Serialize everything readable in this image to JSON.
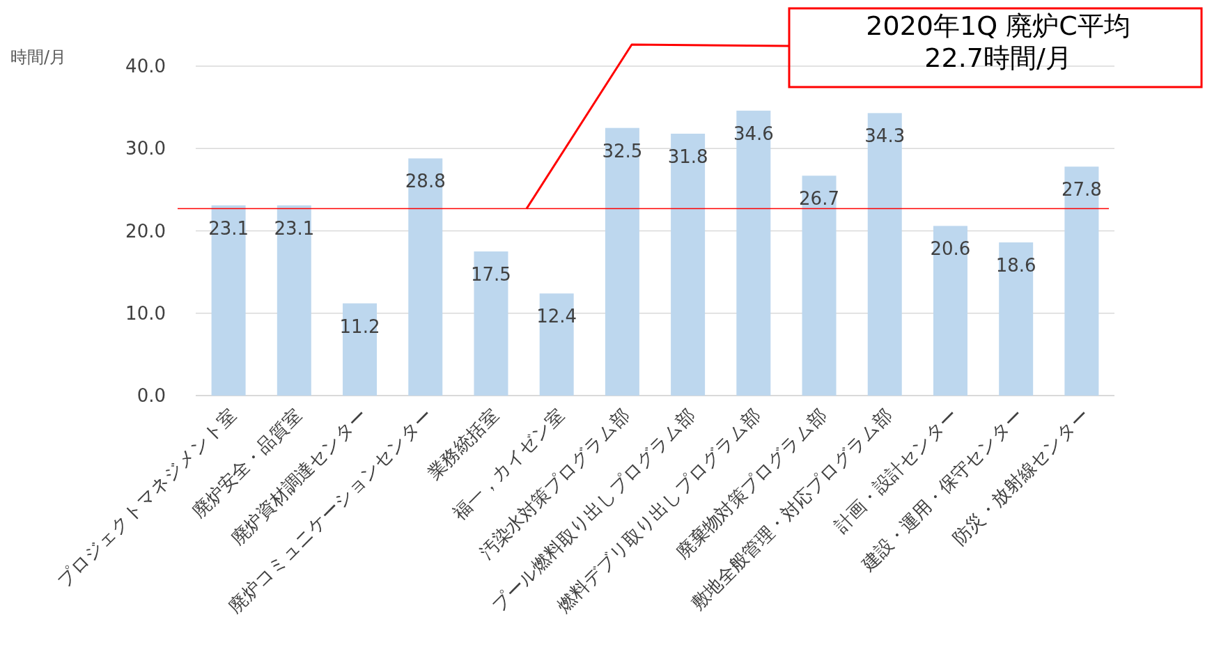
{
  "chart_data": {
    "type": "bar",
    "ylabel": "時間/月",
    "categories": [
      "プロジェクトマネジメント室",
      "廃炉安全・品質室",
      "廃炉資材調達センター",
      "廃炉コミュニケーションセンター",
      "業務統括室",
      "福一，カイゼン室",
      "汚染水対策プログラム部",
      "プール燃料取り出しプログラム部",
      "燃料デブリ取り出しプログラム部",
      "廃棄物対策プログラム部",
      "敷地全般管理・対応プログラム部",
      "計画・設計センター",
      "建設・運用・保守センター",
      "防災・放射線センター"
    ],
    "values": [
      23.1,
      23.1,
      11.2,
      28.8,
      17.5,
      12.4,
      32.5,
      31.8,
      34.6,
      26.7,
      34.3,
      20.6,
      18.6,
      27.8
    ],
    "color": "#bdd7ee",
    "data_labels": true,
    "grid": "y",
    "ylim": [
      0,
      40
    ],
    "yticks": [
      {
        "value": 0,
        "label": "0.0"
      },
      {
        "value": 10,
        "label": "10.0"
      },
      {
        "value": 20,
        "label": "20.0"
      },
      {
        "value": 30,
        "label": "30.0"
      },
      {
        "value": 40,
        "label": "40.0"
      }
    ],
    "annotations": [
      "2020年1Q 廃炉C平均\n22.7時間/月"
    ],
    "ref_lines": [
      {
        "axis": "y",
        "value": 22.7,
        "color": "#ff0000"
      }
    ]
  }
}
